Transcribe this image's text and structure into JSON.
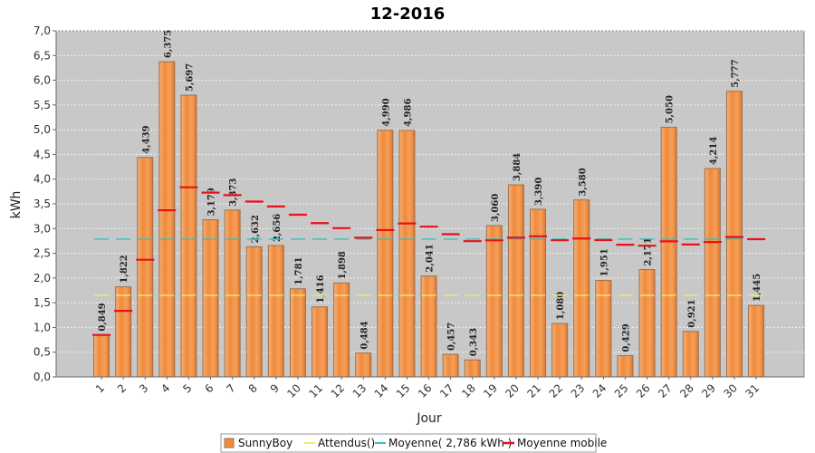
{
  "chart_data": {
    "type": "bar",
    "title": "12-2016",
    "xlabel": "Jour",
    "ylabel": "kWh",
    "ylim": [
      0,
      7.0
    ],
    "yticks": [
      "0,0",
      "0,5",
      "1,0",
      "1,5",
      "2,0",
      "2,5",
      "3,0",
      "3,5",
      "4,0",
      "4,5",
      "5,0",
      "5,5",
      "6,0",
      "6,5",
      "7,0"
    ],
    "categories": [
      "1",
      "2",
      "3",
      "4",
      "5",
      "6",
      "7",
      "8",
      "9",
      "10",
      "11",
      "12",
      "13",
      "14",
      "15",
      "16",
      "17",
      "18",
      "19",
      "20",
      "21",
      "22",
      "23",
      "24",
      "25",
      "26",
      "27",
      "28",
      "29",
      "30",
      "31"
    ],
    "series": [
      {
        "name": "SunnyBoy",
        "type": "bar",
        "color": "#f08a3c",
        "values": [
          0.849,
          1.822,
          4.439,
          6.375,
          5.697,
          3.179,
          3.373,
          2.632,
          2.656,
          1.781,
          1.416,
          1.898,
          0.484,
          4.99,
          4.986,
          2.041,
          0.457,
          0.343,
          3.06,
          3.884,
          3.39,
          1.08,
          3.58,
          1.951,
          0.429,
          2.171,
          5.05,
          0.921,
          4.214,
          5.777,
          1.445
        ],
        "labels": [
          "0,849",
          "1,822",
          "4,439",
          "6,375",
          "5,697",
          "3,179",
          "3,373",
          "2,632",
          "2,656",
          "1,781",
          "1,416",
          "1,898",
          "0,484",
          "4,990",
          "4,986",
          "2,041",
          "0,457",
          "0,343",
          "3,060",
          "3,884",
          "3,390",
          "1,080",
          "3,580",
          "1,951",
          "0,429",
          "2,171",
          "5,050",
          "0,921",
          "4,214",
          "5,777",
          "1,445"
        ]
      },
      {
        "name": "Attendus()",
        "type": "step",
        "color": "#f2e96b",
        "values": [
          1.65,
          1.65,
          1.65,
          1.65,
          1.65,
          1.65,
          1.65,
          1.65,
          1.65,
          1.65,
          1.65,
          1.65,
          1.65,
          1.65,
          1.65,
          1.65,
          1.65,
          1.65,
          1.65,
          1.65,
          1.65,
          1.65,
          1.65,
          1.65,
          1.65,
          1.65,
          1.65,
          1.65,
          1.65,
          1.65,
          1.65
        ]
      },
      {
        "name": "Moyenne( 2,786 kWh )",
        "type": "step",
        "color": "#33c1c1",
        "values": [
          2.786,
          2.786,
          2.786,
          2.786,
          2.786,
          2.786,
          2.786,
          2.786,
          2.786,
          2.786,
          2.786,
          2.786,
          2.786,
          2.786,
          2.786,
          2.786,
          2.786,
          2.786,
          2.786,
          2.786,
          2.786,
          2.786,
          2.786,
          2.786,
          2.786,
          2.786,
          2.786,
          2.786,
          2.786,
          2.786,
          2.786
        ]
      },
      {
        "name": "Moyenne mobile",
        "type": "step",
        "color": "#e8101a",
        "values": [
          0.849,
          1.335,
          2.37,
          3.371,
          3.836,
          3.727,
          3.676,
          3.546,
          3.447,
          3.28,
          3.11,
          3.009,
          2.815,
          2.97,
          3.104,
          3.038,
          2.886,
          2.745,
          2.761,
          2.817,
          2.844,
          2.764,
          2.799,
          2.767,
          2.673,
          2.654,
          2.742,
          2.677,
          2.728,
          2.829,
          2.786
        ]
      }
    ],
    "grid": true,
    "legend": "bottom"
  }
}
